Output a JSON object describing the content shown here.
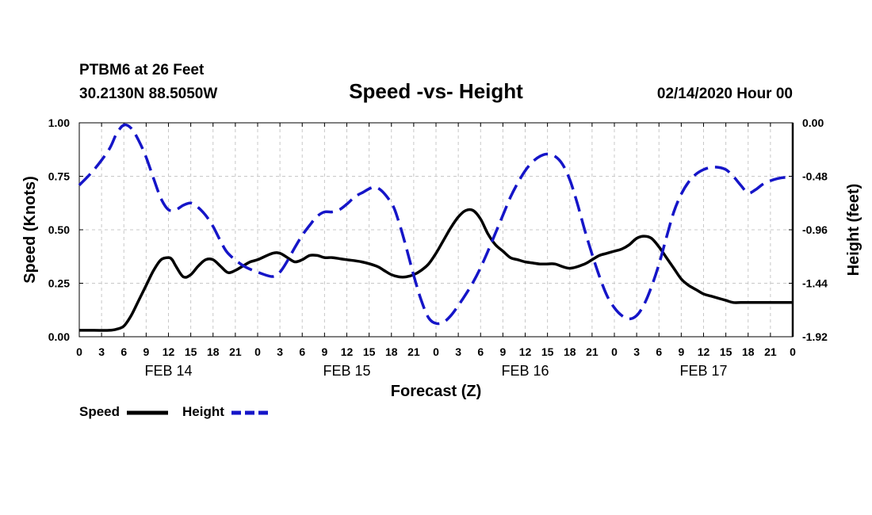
{
  "header": {
    "station": "PTBM6 at 26 Feet",
    "location": "30.2130N 88.5050W",
    "datetime": "02/14/2020 Hour 00"
  },
  "chart_data": {
    "type": "line",
    "title": "Speed -vs- Height",
    "xlabel": "Forecast (Z)",
    "ylabel_left": "Speed (Knots)",
    "ylabel_right": "Height (feet)",
    "x_range_hours": [
      0,
      96
    ],
    "x_tick_labels": [
      "0",
      "3",
      "6",
      "9",
      "12",
      "15",
      "18",
      "21",
      "0",
      "3",
      "6",
      "9",
      "12",
      "15",
      "18",
      "21",
      "0",
      "3",
      "6",
      "9",
      "12",
      "15",
      "18",
      "21",
      "0",
      "3",
      "6",
      "9",
      "12",
      "15",
      "18",
      "21",
      "0"
    ],
    "day_labels": [
      {
        "label": "FEB 14",
        "hour": 12
      },
      {
        "label": "FEB 15",
        "hour": 36
      },
      {
        "label": "FEB 16",
        "hour": 60
      },
      {
        "label": "FEB 17",
        "hour": 84
      }
    ],
    "y_left": {
      "range": [
        0,
        1
      ],
      "tick_values": [
        0,
        0.25,
        0.5,
        0.75,
        1.0
      ],
      "tick_labels": [
        "0.00",
        "0.25",
        "0.50",
        "0.75",
        "1.00"
      ]
    },
    "y_right": {
      "range": [
        -1.92,
        0
      ],
      "tick_values": [
        -1.92,
        -1.44,
        -0.96,
        -0.48,
        0
      ],
      "tick_labels": [
        "-1.92",
        "-1.44",
        "-0.96",
        "-0.48",
        "0.00"
      ]
    },
    "grid": true,
    "series": [
      {
        "name": "Speed",
        "axis": "left",
        "color": "#000000",
        "dash": "solid",
        "x": [
          0,
          2,
          4,
          5,
          6,
          7,
          8,
          9,
          10,
          11,
          12,
          12.5,
          13,
          14,
          15,
          16,
          17,
          18,
          19,
          20,
          21,
          22,
          23,
          24,
          26,
          27,
          28,
          29,
          30,
          31,
          32,
          33,
          34,
          35,
          36,
          38,
          40,
          41,
          42,
          43,
          44,
          45,
          46,
          47,
          48,
          49,
          50,
          51,
          52,
          53,
          54,
          55,
          56,
          57,
          58,
          59,
          60,
          61,
          62,
          63,
          64,
          66,
          68,
          69,
          70,
          71,
          72,
          73,
          74,
          75,
          76,
          77,
          78,
          79,
          80,
          81,
          82,
          83,
          84,
          85,
          86,
          87,
          88,
          89,
          90,
          91,
          92,
          93,
          94,
          95,
          96
        ],
        "values": [
          0.03,
          0.03,
          0.03,
          0.035,
          0.05,
          0.1,
          0.17,
          0.24,
          0.31,
          0.36,
          0.37,
          0.36,
          0.33,
          0.28,
          0.29,
          0.33,
          0.36,
          0.36,
          0.33,
          0.3,
          0.31,
          0.33,
          0.35,
          0.36,
          0.39,
          0.39,
          0.37,
          0.35,
          0.36,
          0.38,
          0.38,
          0.37,
          0.37,
          0.365,
          0.36,
          0.35,
          0.33,
          0.31,
          0.29,
          0.28,
          0.28,
          0.29,
          0.31,
          0.34,
          0.39,
          0.45,
          0.51,
          0.56,
          0.59,
          0.59,
          0.55,
          0.48,
          0.43,
          0.4,
          0.37,
          0.36,
          0.35,
          0.345,
          0.34,
          0.34,
          0.34,
          0.32,
          0.34,
          0.36,
          0.38,
          0.39,
          0.4,
          0.41,
          0.43,
          0.46,
          0.47,
          0.46,
          0.42,
          0.37,
          0.32,
          0.27,
          0.24,
          0.22,
          0.2,
          0.19,
          0.18,
          0.17,
          0.16,
          0.16,
          0.16,
          0.16,
          0.16,
          0.16,
          0.16,
          0.16,
          0.16
        ]
      },
      {
        "name": "Height",
        "axis": "right",
        "color": "#1515c8",
        "dash": "dashed",
        "x": [
          0,
          2,
          4,
          5,
          6,
          7,
          8,
          9,
          10,
          11,
          12,
          13,
          14,
          15,
          16,
          17,
          18,
          19,
          20,
          22,
          24,
          26,
          27,
          28,
          29,
          30,
          31,
          32,
          33,
          34,
          35,
          36,
          37,
          38,
          40,
          42,
          43,
          44,
          45,
          46,
          47,
          48,
          49,
          50,
          51,
          52,
          53,
          54,
          55,
          56,
          57,
          58,
          59,
          60,
          61,
          62,
          63,
          64,
          65,
          66,
          67,
          68,
          69,
          70,
          71,
          72,
          73,
          74,
          75,
          76,
          77,
          78,
          79,
          80,
          81,
          82,
          83,
          84,
          85,
          86,
          87,
          88,
          89,
          90,
          91,
          92,
          93,
          94,
          95,
          96
        ],
        "values": [
          -0.56,
          -0.42,
          -0.24,
          -0.1,
          -0.02,
          -0.05,
          -0.16,
          -0.31,
          -0.5,
          -0.68,
          -0.78,
          -0.78,
          -0.74,
          -0.72,
          -0.76,
          -0.83,
          -0.93,
          -1.06,
          -1.17,
          -1.28,
          -1.34,
          -1.38,
          -1.34,
          -1.24,
          -1.12,
          -1.01,
          -0.92,
          -0.84,
          -0.8,
          -0.8,
          -0.78,
          -0.73,
          -0.67,
          -0.63,
          -0.58,
          -0.72,
          -0.89,
          -1.12,
          -1.37,
          -1.59,
          -1.75,
          -1.8,
          -1.79,
          -1.73,
          -1.64,
          -1.54,
          -1.43,
          -1.3,
          -1.15,
          -0.99,
          -0.83,
          -0.67,
          -0.54,
          -0.43,
          -0.35,
          -0.3,
          -0.28,
          -0.3,
          -0.37,
          -0.51,
          -0.72,
          -0.96,
          -1.18,
          -1.38,
          -1.55,
          -1.66,
          -1.73,
          -1.76,
          -1.73,
          -1.63,
          -1.47,
          -1.27,
          -1.03,
          -0.8,
          -0.64,
          -0.53,
          -0.46,
          -0.42,
          -0.4,
          -0.4,
          -0.42,
          -0.48,
          -0.56,
          -0.63,
          -0.6,
          -0.55,
          -0.52,
          -0.5,
          -0.49,
          -0.49
        ]
      }
    ]
  },
  "legend": {
    "speed_label": "Speed",
    "height_label": "Height"
  }
}
